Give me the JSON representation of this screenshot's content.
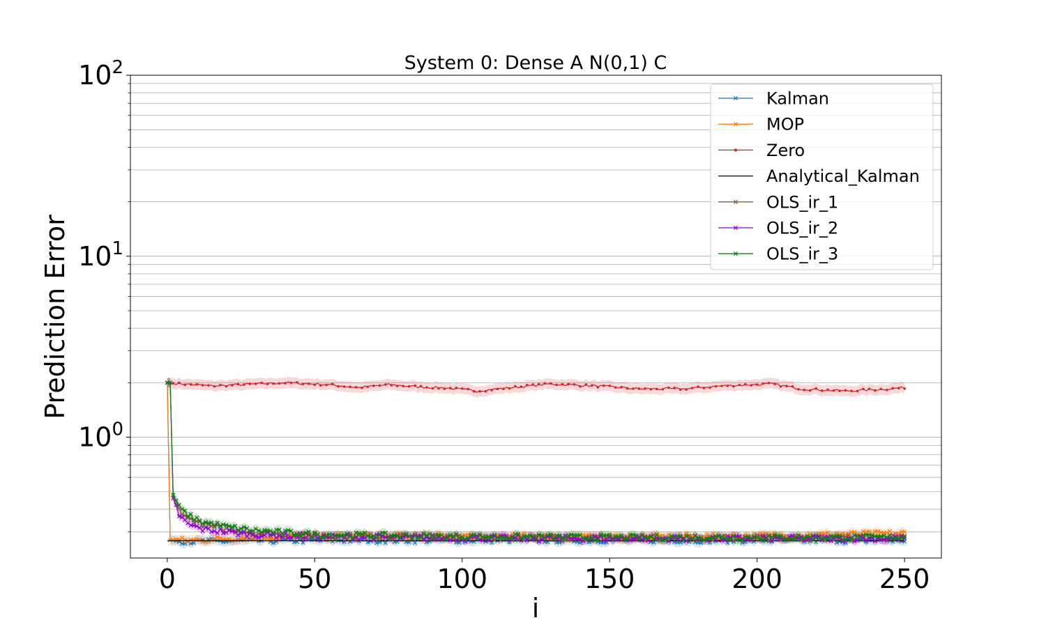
{
  "chart_data": {
    "type": "line",
    "title": "System 0: Dense A N(0,1) C",
    "xlabel": "i",
    "ylabel": "Prediction Error",
    "xlim": [
      -12.5,
      262.5
    ],
    "ylim": [
      0.215,
      100
    ],
    "yscale": "log",
    "grid": "y-major-and-minor",
    "legend_position": "top-right",
    "x_ticks": [
      {
        "value": 0,
        "label": "0"
      },
      {
        "value": 50,
        "label": "50"
      },
      {
        "value": 100,
        "label": "100"
      },
      {
        "value": 150,
        "label": "150"
      },
      {
        "value": 200,
        "label": "200"
      },
      {
        "value": 250,
        "label": "250"
      }
    ],
    "y_ticks": [
      {
        "value": 1,
        "base": "10",
        "exp": "0"
      },
      {
        "value": 10,
        "base": "10",
        "exp": "1"
      },
      {
        "value": 100,
        "base": "10",
        "exp": "2"
      }
    ],
    "x": {
      "start": 0,
      "end": 250,
      "step": 1
    },
    "series": [
      {
        "name": "Zero",
        "color": "#d62728",
        "marker": "dot",
        "band": true,
        "description": "flat around 1.95, slight dip to ~1.8 near i=100-110 and i=225",
        "anchors": [
          [
            0,
            2.0
          ],
          [
            5,
            1.97
          ],
          [
            15,
            1.92
          ],
          [
            25,
            1.95
          ],
          [
            40,
            2.0
          ],
          [
            55,
            1.95
          ],
          [
            65,
            1.88
          ],
          [
            75,
            1.95
          ],
          [
            85,
            1.9
          ],
          [
            95,
            1.87
          ],
          [
            105,
            1.8
          ],
          [
            115,
            1.87
          ],
          [
            130,
            1.97
          ],
          [
            145,
            1.92
          ],
          [
            160,
            1.85
          ],
          [
            175,
            1.85
          ],
          [
            190,
            1.93
          ],
          [
            205,
            1.97
          ],
          [
            215,
            1.85
          ],
          [
            230,
            1.8
          ],
          [
            245,
            1.85
          ],
          [
            250,
            1.88
          ]
        ]
      },
      {
        "name": "Kalman",
        "color": "#1f77b4",
        "marker": "x",
        "band": true,
        "anchors": [
          [
            0,
            2.0
          ],
          [
            1,
            0.27
          ],
          [
            10,
            0.265
          ],
          [
            30,
            0.268
          ],
          [
            60,
            0.27
          ],
          [
            100,
            0.27
          ],
          [
            150,
            0.27
          ],
          [
            200,
            0.27
          ],
          [
            250,
            0.27
          ]
        ]
      },
      {
        "name": "MOP",
        "color": "#ff7f0e",
        "marker": "x",
        "band": true,
        "anchors": [
          [
            0,
            2.0
          ],
          [
            1,
            0.27
          ],
          [
            10,
            0.27
          ],
          [
            30,
            0.28
          ],
          [
            60,
            0.283
          ],
          [
            100,
            0.283
          ],
          [
            150,
            0.28
          ],
          [
            200,
            0.285
          ],
          [
            250,
            0.295
          ]
        ]
      },
      {
        "name": "Analytical_Kalman",
        "color": "#000000",
        "marker": "none",
        "band": false,
        "anchors": [
          [
            0,
            0.268
          ],
          [
            250,
            0.268
          ]
        ]
      },
      {
        "name": "OLS_ir_1",
        "color": "#8c564b",
        "marker": "x",
        "band": true,
        "anchors": [
          [
            0,
            2.0
          ],
          [
            1,
            2.0
          ],
          [
            2,
            0.48
          ],
          [
            4,
            0.4
          ],
          [
            7,
            0.36
          ],
          [
            12,
            0.33
          ],
          [
            20,
            0.31
          ],
          [
            30,
            0.295
          ],
          [
            50,
            0.285
          ],
          [
            100,
            0.28
          ],
          [
            150,
            0.278
          ],
          [
            200,
            0.278
          ],
          [
            250,
            0.278
          ]
        ]
      },
      {
        "name": "OLS_ir_2",
        "color": "#9400d3",
        "marker": "x",
        "band": true,
        "anchors": [
          [
            0,
            2.0
          ],
          [
            1,
            2.0
          ],
          [
            2,
            0.46
          ],
          [
            4,
            0.37
          ],
          [
            7,
            0.33
          ],
          [
            12,
            0.31
          ],
          [
            20,
            0.3
          ],
          [
            30,
            0.29
          ],
          [
            50,
            0.282
          ],
          [
            100,
            0.278
          ],
          [
            150,
            0.276
          ],
          [
            200,
            0.276
          ],
          [
            250,
            0.276
          ]
        ]
      },
      {
        "name": "OLS_ir_3",
        "color": "#137e13",
        "marker": "x",
        "band": true,
        "anchors": [
          [
            0,
            2.0
          ],
          [
            1,
            2.0
          ],
          [
            2,
            0.48
          ],
          [
            4,
            0.41
          ],
          [
            7,
            0.37
          ],
          [
            12,
            0.34
          ],
          [
            20,
            0.32
          ],
          [
            30,
            0.305
          ],
          [
            50,
            0.29
          ],
          [
            100,
            0.283
          ],
          [
            150,
            0.28
          ],
          [
            200,
            0.28
          ],
          [
            250,
            0.28
          ]
        ]
      }
    ],
    "legend_order": [
      "Kalman",
      "MOP",
      "Zero",
      "Analytical_Kalman",
      "OLS_ir_1",
      "OLS_ir_2",
      "OLS_ir_3"
    ]
  }
}
